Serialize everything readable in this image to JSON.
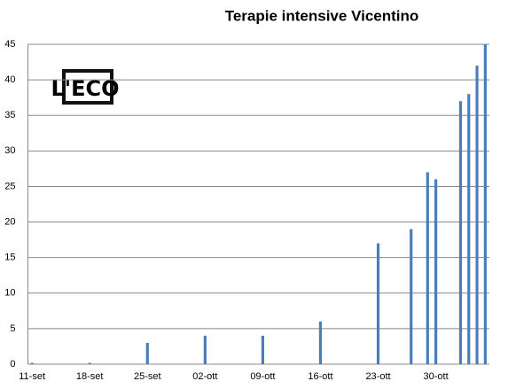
{
  "chart_data": {
    "type": "bar",
    "title": "Terapie intensive Vicentino",
    "annotations": [
      "L'ECO"
    ],
    "categories": [
      "11-set",
      null,
      null,
      null,
      null,
      null,
      null,
      "18-set",
      null,
      null,
      null,
      null,
      null,
      null,
      "25-set",
      null,
      null,
      null,
      null,
      null,
      null,
      "02-ott",
      null,
      null,
      null,
      null,
      null,
      null,
      "09-ott",
      null,
      null,
      null,
      null,
      null,
      null,
      "16-ott",
      null,
      null,
      null,
      null,
      null,
      null,
      "23-ott",
      null,
      null,
      null,
      null,
      null,
      null,
      "30-ott",
      null,
      null,
      null,
      null,
      null,
      null
    ],
    "values": [
      0,
      null,
      null,
      null,
      null,
      null,
      null,
      0,
      null,
      null,
      null,
      null,
      null,
      null,
      3,
      null,
      null,
      null,
      null,
      null,
      null,
      4,
      null,
      null,
      null,
      null,
      null,
      null,
      4,
      null,
      null,
      null,
      null,
      null,
      null,
      6,
      null,
      null,
      null,
      null,
      null,
      null,
      17,
      null,
      null,
      null,
      19,
      null,
      27,
      26,
      null,
      null,
      37,
      38,
      42,
      45
    ],
    "color": "#4a7ebb",
    "ylim": [
      0,
      45
    ],
    "yticks": [
      0,
      5,
      10,
      15,
      20,
      25,
      30,
      35,
      40,
      45
    ],
    "grid": true
  }
}
